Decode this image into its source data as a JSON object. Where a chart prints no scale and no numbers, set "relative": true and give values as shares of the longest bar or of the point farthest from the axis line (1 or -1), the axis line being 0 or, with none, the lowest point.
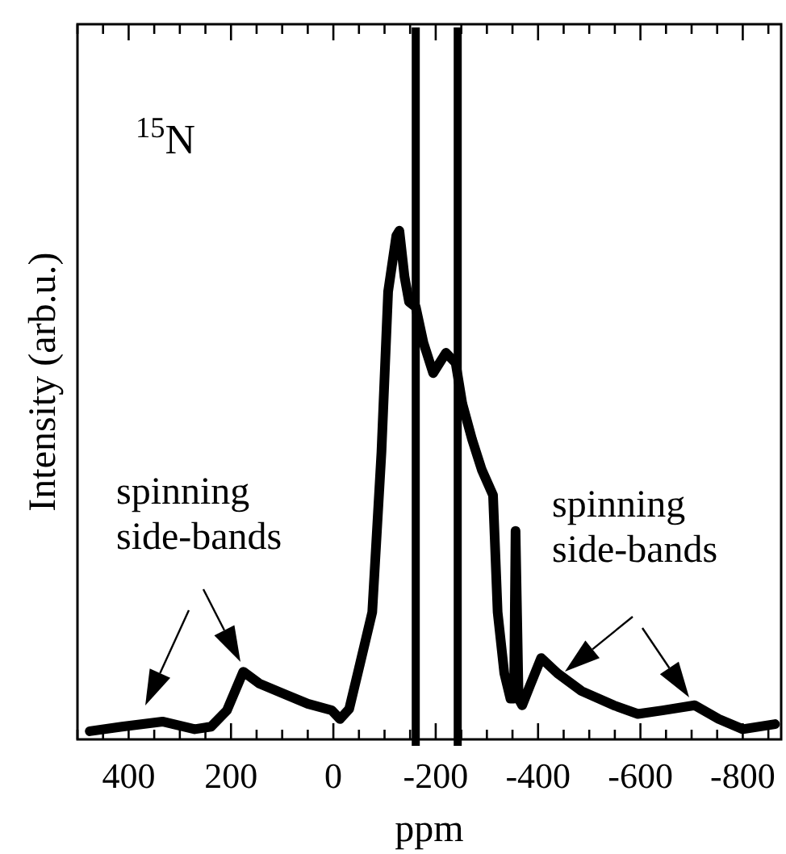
{
  "chart_data": {
    "type": "line",
    "relative": true,
    "xlabel": "ppm",
    "ylabel": "Intensity (arb.u.)",
    "xlim": [
      500,
      -875
    ],
    "xticks": [
      {
        "value": 500,
        "label": null
      },
      {
        "value": 450,
        "label": null
      },
      400,
      {
        "value": 350,
        "label": null
      },
      {
        "value": 300,
        "label": null
      },
      {
        "value": 250,
        "label": null
      },
      200,
      {
        "value": 150,
        "label": null
      },
      {
        "value": 100,
        "label": null
      },
      {
        "value": 50,
        "label": null
      },
      0,
      {
        "value": -50,
        "label": null
      },
      {
        "value": -100,
        "label": null
      },
      {
        "value": -150,
        "label": null
      },
      -200,
      {
        "value": -250,
        "label": null
      },
      {
        "value": -300,
        "label": null
      },
      {
        "value": -350,
        "label": null
      },
      -400,
      {
        "value": -450,
        "label": null
      },
      {
        "value": -500,
        "label": null
      },
      {
        "value": -550,
        "label": null
      },
      -600,
      {
        "value": -650,
        "label": null
      },
      {
        "value": -700,
        "label": null
      },
      {
        "value": -750,
        "label": null
      },
      -800,
      {
        "value": -850,
        "label": null
      }
    ],
    "marker": "none",
    "line_style": "solid",
    "grid": false,
    "series": [
      {
        "color": "#000000",
        "x": [
          476,
          413,
          334,
          271,
          239,
          208,
          176,
          145,
          98,
          50,
          3,
          -13,
          -31,
          -50,
          -76,
          -94,
          -107,
          -123,
          -129,
          -139,
          -148,
          -161,
          -176,
          -195,
          -220,
          -239,
          -252,
          -271,
          -290,
          -312,
          -321,
          -334,
          -346,
          -353,
          -356,
          -362,
          -369,
          -384,
          -406,
          -438,
          -485,
          -548,
          -595,
          -643,
          -706,
          -753,
          -800,
          -863
        ],
        "values": [
          0.016,
          0.025,
          0.035,
          0.02,
          0.025,
          0.057,
          0.133,
          0.11,
          0.09,
          0.07,
          0.057,
          0.04,
          0.06,
          0.14,
          0.25,
          0.565,
          0.88,
          0.99,
          1,
          0.91,
          0.86,
          0.85,
          0.78,
          0.72,
          0.76,
          0.74,
          0.66,
          0.59,
          0.53,
          0.48,
          0.25,
          0.13,
          0.08,
          0.08,
          0.41,
          0.08,
          0.067,
          0.105,
          0.16,
          0.13,
          0.095,
          0.067,
          0.05,
          0.057,
          0.067,
          0.04,
          0.02,
          0.03
        ]
      }
    ],
    "ref_lines": [
      {
        "axis": "x",
        "value": -161,
        "color": "#000000"
      },
      {
        "axis": "x",
        "value": -243,
        "color": "#000000"
      }
    ],
    "annotations": [
      "$^{15}$N",
      "spinning side-bands",
      "spinning side-bands"
    ]
  }
}
